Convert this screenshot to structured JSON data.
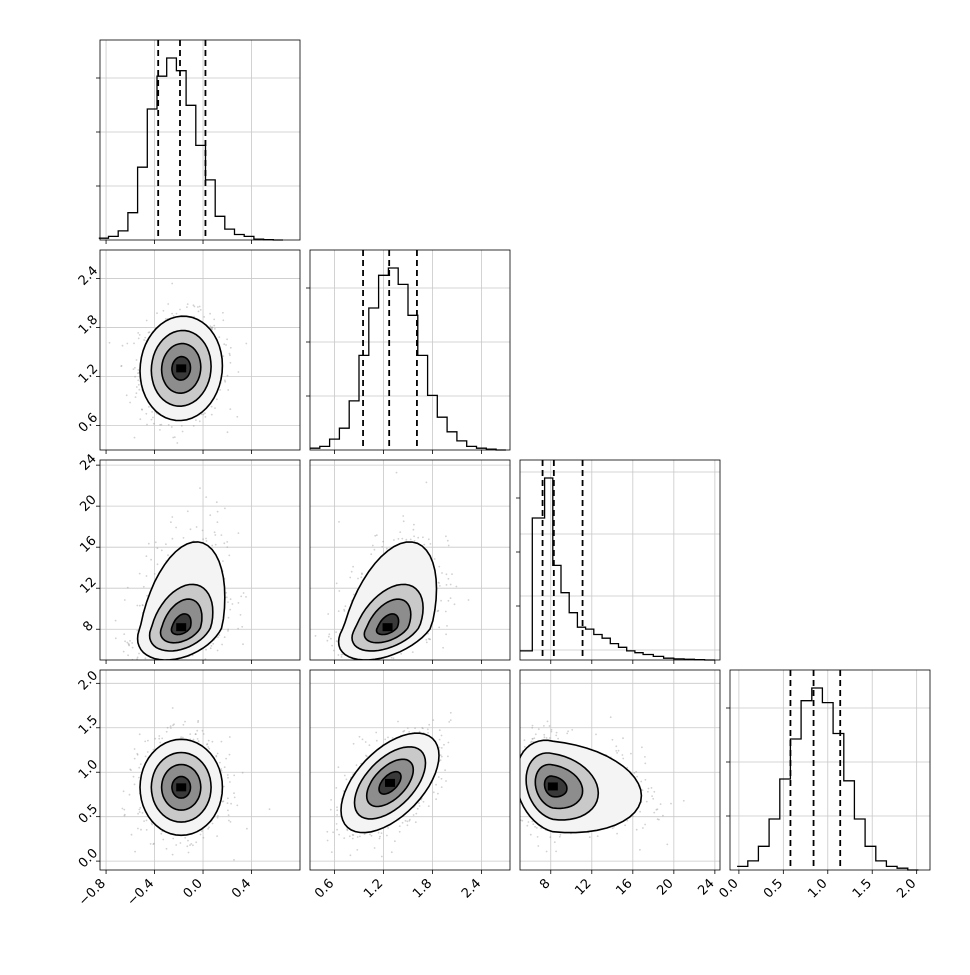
{
  "chart_data": {
    "type": "corner",
    "quantiles_note": "dashed lines mark 16th, 50th and 84th percentiles",
    "parameters": [
      {
        "id": "p0",
        "range": [
          -0.85,
          0.8
        ],
        "ticks": [
          -0.8,
          -0.4,
          0.0,
          0.4
        ],
        "tick_labels": [
          "−0.8",
          "−0.4",
          "0.0",
          "0.4"
        ],
        "quantiles": [
          -0.37,
          -0.19,
          0.02
        ],
        "hist_bins": [
          -0.86,
          -0.78,
          -0.7,
          -0.62,
          -0.54,
          -0.46,
          -0.38,
          -0.3,
          -0.22,
          -0.14,
          -0.06,
          0.02,
          0.1,
          0.18,
          0.26,
          0.34,
          0.42,
          0.5,
          0.58,
          0.66
        ],
        "hist_counts": [
          0.01,
          0.02,
          0.05,
          0.15,
          0.4,
          0.72,
          0.9,
          1.0,
          0.93,
          0.74,
          0.52,
          0.33,
          0.13,
          0.06,
          0.03,
          0.02,
          0.005,
          0.002,
          0.0
        ]
      },
      {
        "id": "p1",
        "range": [
          0.3,
          2.75
        ],
        "ticks": [
          0.6,
          1.2,
          1.8,
          2.4
        ],
        "tick_labels": [
          "0.6",
          "1.2",
          "1.8",
          "2.4"
        ],
        "quantiles": [
          0.95,
          1.27,
          1.61
        ],
        "hist_bins": [
          0.3,
          0.42,
          0.54,
          0.66,
          0.78,
          0.9,
          1.02,
          1.14,
          1.26,
          1.38,
          1.5,
          1.62,
          1.74,
          1.86,
          1.98,
          2.1,
          2.22,
          2.34,
          2.46,
          2.58,
          2.7
        ],
        "hist_counts": [
          0.01,
          0.02,
          0.06,
          0.12,
          0.27,
          0.52,
          0.78,
          0.96,
          1.0,
          0.91,
          0.74,
          0.52,
          0.3,
          0.18,
          0.1,
          0.05,
          0.02,
          0.01,
          0.005,
          0.0
        ]
      },
      {
        "id": "p2",
        "range": [
          5.0,
          24.5
        ],
        "ticks": [
          8,
          12,
          16,
          20,
          24
        ],
        "tick_labels": [
          "8",
          "12",
          "16",
          "20",
          "24"
        ],
        "quantiles": [
          7.2,
          8.3,
          11.1
        ],
        "hist_bins": [
          5.0,
          6.2,
          7.4,
          8.2,
          9.0,
          9.8,
          10.6,
          11.4,
          12.2,
          13.0,
          13.8,
          14.6,
          15.4,
          16.2,
          17.0,
          18.0,
          19.0,
          20.0,
          21.0,
          22.0,
          23.0,
          24.0
        ],
        "hist_counts": [
          0.05,
          0.78,
          1.0,
          0.52,
          0.37,
          0.26,
          0.18,
          0.17,
          0.14,
          0.12,
          0.09,
          0.07,
          0.05,
          0.04,
          0.03,
          0.02,
          0.01,
          0.006,
          0.004,
          0.002,
          0.0
        ],
        "grid_ys": [
          0.05,
          0.32,
          0.63,
          0.94
        ]
      },
      {
        "id": "p3",
        "range": [
          -0.1,
          2.15
        ],
        "ticks": [
          0.0,
          0.5,
          1.0,
          1.5,
          2.0
        ],
        "tick_labels": [
          "0.0",
          "0.5",
          "1.0",
          "1.5",
          "2.0"
        ],
        "quantiles": [
          0.58,
          0.84,
          1.14
        ],
        "hist_bins": [
          -0.02,
          0.1,
          0.22,
          0.34,
          0.46,
          0.58,
          0.7,
          0.82,
          0.94,
          1.06,
          1.18,
          1.3,
          1.42,
          1.54,
          1.66,
          1.78,
          1.9,
          2.02
        ],
        "hist_counts": [
          0.02,
          0.05,
          0.13,
          0.28,
          0.5,
          0.72,
          0.93,
          1.0,
          0.92,
          0.75,
          0.49,
          0.28,
          0.13,
          0.05,
          0.02,
          0.01,
          0.0
        ]
      }
    ],
    "pairs": [
      {
        "x": "p0",
        "y": "p1",
        "center": [
          -0.18,
          1.3
        ],
        "sd": [
          0.17,
          0.32
        ],
        "rho": 0.05
      },
      {
        "x": "p0",
        "y": "p2",
        "center": [
          -0.18,
          8.2
        ],
        "sd": [
          0.18,
          1.6
        ],
        "rho": 0.35,
        "skew": 1.0
      },
      {
        "x": "p1",
        "y": "p2",
        "center": [
          1.25,
          8.2
        ],
        "sd": [
          0.3,
          1.6
        ],
        "rho": 0.45,
        "skew": 1.0
      },
      {
        "x": "p0",
        "y": "p3",
        "center": [
          -0.18,
          0.83
        ],
        "sd": [
          0.17,
          0.27
        ],
        "rho": 0.0
      },
      {
        "x": "p1",
        "y": "p3",
        "center": [
          1.28,
          0.88
        ],
        "sd": [
          0.3,
          0.28
        ],
        "rho": 0.55
      },
      {
        "x": "p2",
        "y": "p3",
        "center": [
          8.2,
          0.84
        ],
        "sd": [
          1.8,
          0.26
        ],
        "rho": -0.2,
        "skewx": 1.0
      }
    ],
    "grid": true,
    "xlabel": "",
    "ylabel": ""
  }
}
